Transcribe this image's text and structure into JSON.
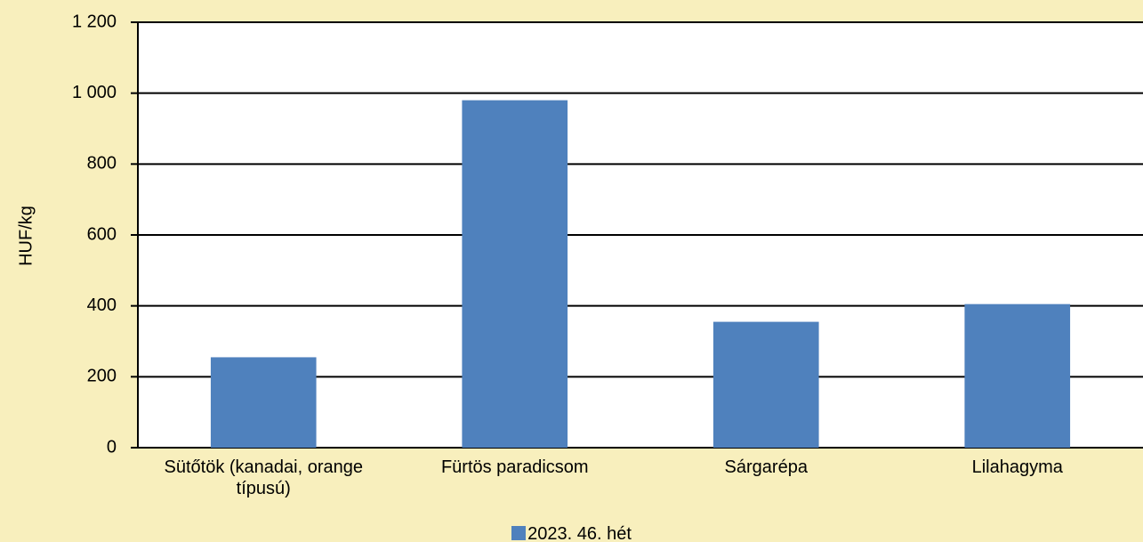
{
  "chart_data": {
    "type": "bar",
    "y_label": "HUF/kg",
    "categories": [
      "Sütőtök (kanadai, orange típusú)",
      "Fürtös paradicsom",
      "Sárgarépa",
      "Lilahagyma"
    ],
    "series": [
      {
        "name": "2023. 46. hét",
        "color": "#4f81bd",
        "values": [
          255,
          980,
          355,
          405
        ]
      }
    ],
    "ylim": [
      0,
      1200
    ],
    "yticks": [
      0,
      200,
      400,
      600,
      800,
      {
        "value": 1000,
        "label": "1 000"
      },
      {
        "value": 1200,
        "label": "1 200"
      }
    ],
    "grid": true,
    "legend": "bottom"
  }
}
